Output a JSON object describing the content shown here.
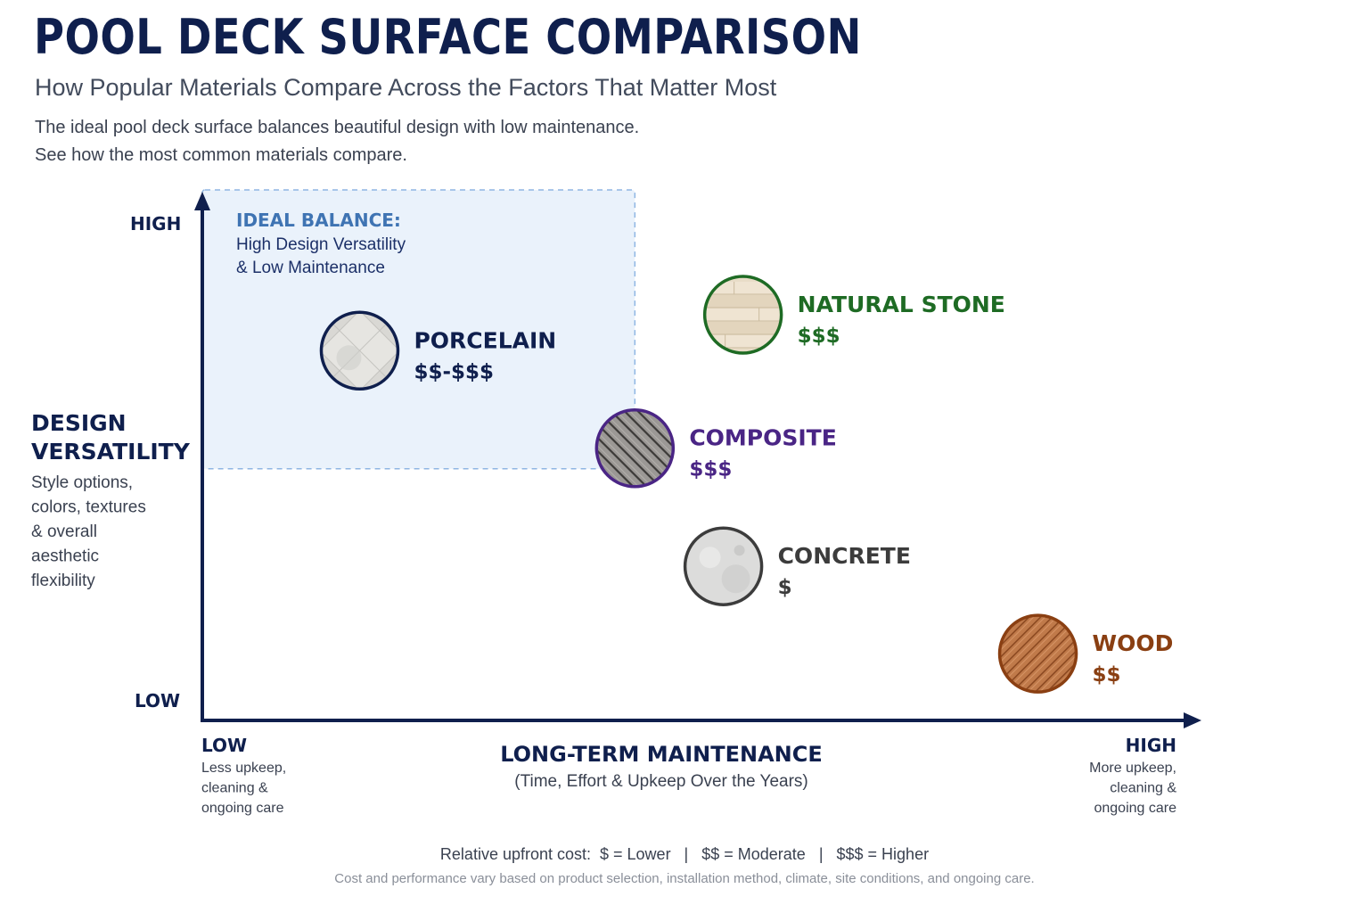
{
  "header": {
    "title": "POOL DECK SURFACE COMPARISON",
    "subtitle": "How Popular Materials Compare Across the Factors That Matter Most",
    "intro_line1": "The ideal pool deck surface balances beautiful design with low maintenance.",
    "intro_line2": "See how the most common materials compare."
  },
  "chart_data": {
    "type": "scatter",
    "title": "POOL DECK SURFACE COMPARISON",
    "xlabel": "LONG-TERM MAINTENANCE",
    "xlabel_sub": "(Time, Effort & Upkeep Over the Years)",
    "ylabel_line1": "DESIGN",
    "ylabel_line2": "VERSATILITY",
    "ylabel_desc": [
      "Style options,",
      "colors, textures",
      "& overall",
      "aesthetic",
      "flexibility"
    ],
    "x_low": "LOW",
    "x_low_desc": [
      "Less upkeep,",
      "cleaning &",
      "ongoing care"
    ],
    "x_high": "HIGH",
    "x_high_desc": [
      "More upkeep,",
      "cleaning &",
      "ongoing care"
    ],
    "y_low": "LOW",
    "y_high": "HIGH",
    "xlim": [
      0,
      10
    ],
    "ylim": [
      0,
      10
    ],
    "grid": false,
    "ideal_region": {
      "title": "IDEAL BALANCE:",
      "line1": "High Design Versatility",
      "line2": "& Low Maintenance",
      "x": [
        0,
        4.4
      ],
      "y": [
        4.9,
        10
      ]
    },
    "points": [
      {
        "name": "PORCELAIN",
        "cost": "$$-$$$",
        "x": 1.6,
        "y": 7.2,
        "color": "#0f1f4d",
        "label_color": "#0f1f4d",
        "texture": "porcelain-tile-icon"
      },
      {
        "name": "NATURAL STONE",
        "cost": "$$$",
        "x": 5.5,
        "y": 7.9,
        "color": "#1e6b24",
        "label_color": "#1e6b24",
        "texture": "stone-plank-icon"
      },
      {
        "name": "COMPOSITE",
        "cost": "$$$",
        "x": 4.4,
        "y": 5.3,
        "color": "#4a2585",
        "label_color": "#4a2585",
        "texture": "composite-board-icon"
      },
      {
        "name": "CONCRETE",
        "cost": "$",
        "x": 5.3,
        "y": 3.0,
        "color": "#3c3c3c",
        "label_color": "#3c3c3c",
        "texture": "concrete-slab-icon"
      },
      {
        "name": "WOOD",
        "cost": "$$",
        "x": 8.5,
        "y": 1.3,
        "color": "#8a3f12",
        "label_color": "#8a3f12",
        "texture": "wood-plank-icon"
      }
    ]
  },
  "footer": {
    "legend": "Relative upfront cost:  $ = Lower   |   $$ = Moderate   |   $$$ = Higher",
    "note": "Cost and performance vary based on product selection, installation method, climate, site conditions, and ongoing care."
  }
}
